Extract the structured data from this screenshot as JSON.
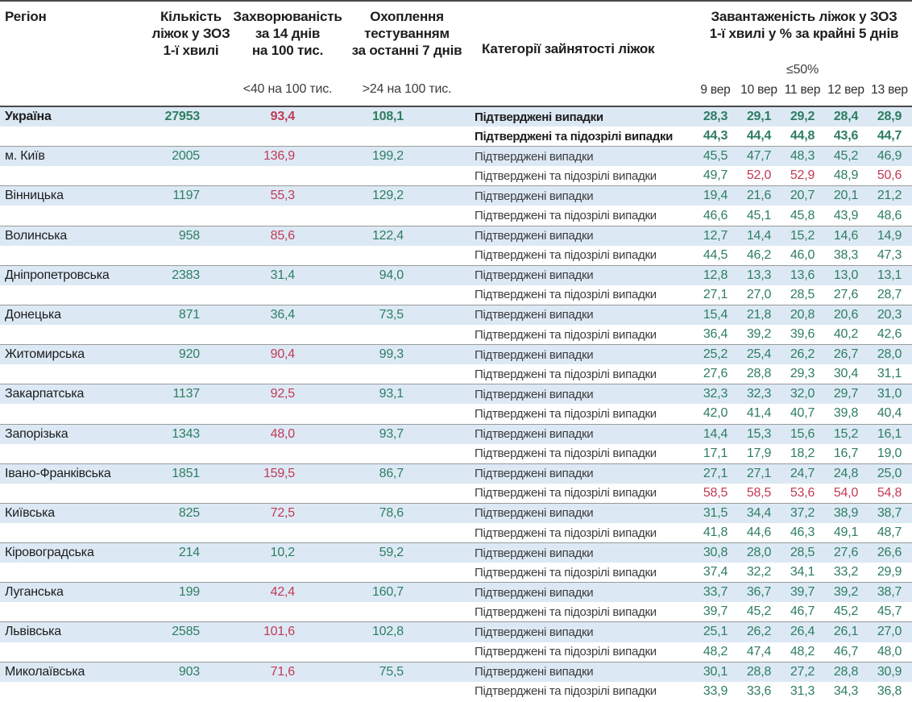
{
  "colors": {
    "green": "#2e7d60",
    "red": "#c13a54",
    "row_blue": "#dce9f5",
    "separator": "#9a9a9a",
    "dark_line": "#4a4a4a"
  },
  "chart_data": {
    "type": "table",
    "columns": {
      "region": "Регіон",
      "beds": "Кількість\nліжок у ЗОЗ\n1-ї хвилі",
      "morbidity": "Захворюваність\nза 14 днів\nна 100 тис.",
      "testing": "Охоплення\nтестуванням\nза останні 7 днів",
      "category": "Категорії зайнятості ліжок",
      "occupancy": "Завантаженість ліжок у ЗОЗ\n1-ї хвилі у % за крайні 5 днів"
    },
    "subheaders": {
      "morbidity": "<40 на 100 тис.",
      "testing": ">24 на 100 тис.",
      "occupancy": "≤50%"
    },
    "dates": [
      "9 вер",
      "10 вер",
      "11 вер",
      "12 вер",
      "13 вер"
    ],
    "category_labels": {
      "confirmed": "Підтверджені випадки",
      "suspected": "Підтверджені та підозрілі випадки"
    },
    "thresholds": {
      "morbidity_red_above": 40,
      "occupancy_red_above": 50
    },
    "regions": [
      {
        "name": "Україна",
        "bold": true,
        "beds": "27953",
        "morbidity": "93,4",
        "testing": "108,1",
        "confirmed": [
          "28,3",
          "29,1",
          "29,2",
          "28,4",
          "28,9"
        ],
        "suspected": [
          "44,3",
          "44,4",
          "44,8",
          "43,6",
          "44,7"
        ]
      },
      {
        "name": "м. Київ",
        "bold": false,
        "beds": "2005",
        "morbidity": "136,9",
        "testing": "199,2",
        "confirmed": [
          "45,5",
          "47,7",
          "48,3",
          "45,2",
          "46,9"
        ],
        "suspected": [
          "49,7",
          "52,0",
          "52,9",
          "48,9",
          "50,6"
        ]
      },
      {
        "name": "Вінницька",
        "bold": false,
        "beds": "1197",
        "morbidity": "55,3",
        "testing": "129,2",
        "confirmed": [
          "19,4",
          "21,6",
          "20,7",
          "20,1",
          "21,2"
        ],
        "suspected": [
          "46,6",
          "45,1",
          "45,8",
          "43,9",
          "48,6"
        ]
      },
      {
        "name": "Волинська",
        "bold": false,
        "beds": "958",
        "morbidity": "85,6",
        "testing": "122,4",
        "confirmed": [
          "12,7",
          "14,4",
          "15,2",
          "14,6",
          "14,9"
        ],
        "suspected": [
          "44,5",
          "46,2",
          "46,0",
          "38,3",
          "47,3"
        ]
      },
      {
        "name": "Дніпропетровська",
        "bold": false,
        "beds": "2383",
        "morbidity": "31,4",
        "testing": "94,0",
        "confirmed": [
          "12,8",
          "13,3",
          "13,6",
          "13,0",
          "13,1"
        ],
        "suspected": [
          "27,1",
          "27,0",
          "28,5",
          "27,6",
          "28,7"
        ]
      },
      {
        "name": "Донецька",
        "bold": false,
        "beds": "871",
        "morbidity": "36,4",
        "testing": "73,5",
        "confirmed": [
          "15,4",
          "21,8",
          "20,8",
          "20,6",
          "20,3"
        ],
        "suspected": [
          "36,4",
          "39,2",
          "39,6",
          "40,2",
          "42,6"
        ]
      },
      {
        "name": "Житомирська",
        "bold": false,
        "beds": "920",
        "morbidity": "90,4",
        "testing": "99,3",
        "confirmed": [
          "25,2",
          "25,4",
          "26,2",
          "26,7",
          "28,0"
        ],
        "suspected": [
          "27,6",
          "28,8",
          "29,3",
          "30,4",
          "31,1"
        ]
      },
      {
        "name": "Закарпатська",
        "bold": false,
        "beds": "1137",
        "morbidity": "92,5",
        "testing": "93,1",
        "confirmed": [
          "32,3",
          "32,3",
          "32,0",
          "29,7",
          "31,0"
        ],
        "suspected": [
          "42,0",
          "41,4",
          "40,7",
          "39,8",
          "40,4"
        ]
      },
      {
        "name": "Запорізька",
        "bold": false,
        "beds": "1343",
        "morbidity": "48,0",
        "testing": "93,7",
        "confirmed": [
          "14,4",
          "15,3",
          "15,6",
          "15,2",
          "16,1"
        ],
        "suspected": [
          "17,1",
          "17,9",
          "18,2",
          "16,7",
          "19,0"
        ]
      },
      {
        "name": "Івано-Франківська",
        "bold": false,
        "beds": "1851",
        "morbidity": "159,5",
        "testing": "86,7",
        "confirmed": [
          "27,1",
          "27,1",
          "24,7",
          "24,8",
          "25,0"
        ],
        "suspected": [
          "58,5",
          "58,5",
          "53,6",
          "54,0",
          "54,8"
        ]
      },
      {
        "name": "Київська",
        "bold": false,
        "beds": "825",
        "morbidity": "72,5",
        "testing": "78,6",
        "confirmed": [
          "31,5",
          "34,4",
          "37,2",
          "38,9",
          "38,7"
        ],
        "suspected": [
          "41,8",
          "44,6",
          "46,3",
          "49,1",
          "48,7"
        ]
      },
      {
        "name": "Кіровоградська",
        "bold": false,
        "beds": "214",
        "morbidity": "10,2",
        "testing": "59,2",
        "confirmed": [
          "30,8",
          "28,0",
          "28,5",
          "27,6",
          "26,6"
        ],
        "suspected": [
          "37,4",
          "32,2",
          "34,1",
          "33,2",
          "29,9"
        ]
      },
      {
        "name": "Луганська",
        "bold": false,
        "beds": "199",
        "morbidity": "42,4",
        "testing": "160,7",
        "confirmed": [
          "33,7",
          "36,7",
          "39,7",
          "39,2",
          "38,7"
        ],
        "suspected": [
          "39,7",
          "45,2",
          "46,7",
          "45,2",
          "45,7"
        ]
      },
      {
        "name": "Львівська",
        "bold": false,
        "beds": "2585",
        "morbidity": "101,6",
        "testing": "102,8",
        "confirmed": [
          "25,1",
          "26,2",
          "26,4",
          "26,1",
          "27,0"
        ],
        "suspected": [
          "48,2",
          "47,4",
          "48,2",
          "46,7",
          "48,0"
        ]
      },
      {
        "name": "Миколаївська",
        "bold": false,
        "beds": "903",
        "morbidity": "71,6",
        "testing": "75,5",
        "confirmed": [
          "30,1",
          "28,8",
          "27,2",
          "28,8",
          "30,9"
        ],
        "suspected": [
          "33,9",
          "33,6",
          "31,3",
          "34,3",
          "36,8"
        ]
      }
    ]
  }
}
